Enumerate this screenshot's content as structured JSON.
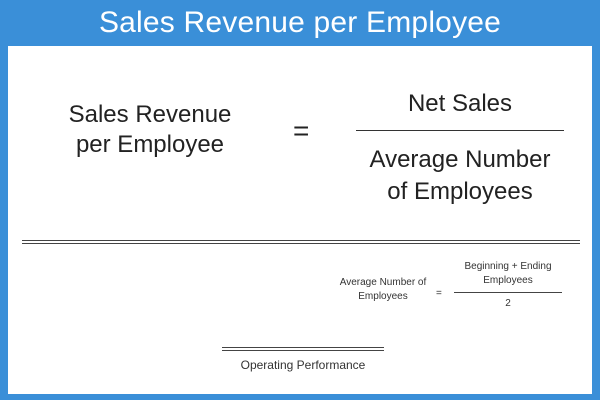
{
  "title": "Sales Revenue per Employee",
  "main_formula": {
    "left": "Sales Revenue\nper Employee",
    "equals": "=",
    "numerator": "Net Sales",
    "denominator": "Average Number\nof Employees"
  },
  "secondary_formula": {
    "left": "Average Number of\nEmployees",
    "equals": "=",
    "numerator": "Beginning + Ending\nEmployees",
    "denominator": "2"
  },
  "footer": {
    "label": "Operating Performance"
  },
  "colors": {
    "background": "#3a8fd8",
    "panel": "#ffffff",
    "text": "#222222"
  }
}
